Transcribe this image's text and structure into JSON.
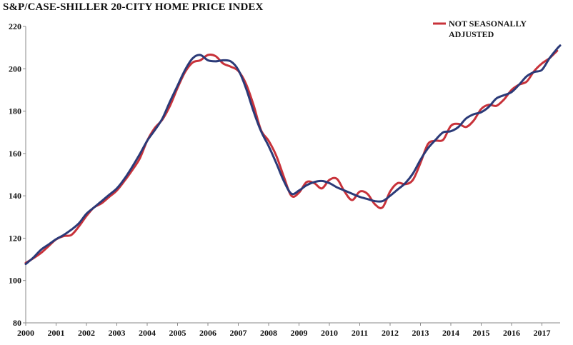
{
  "chart_data": {
    "type": "line",
    "title": "S&P/CASE-SHILLER 20-CITY HOME PRICE INDEX",
    "xlabel": "",
    "ylabel": "",
    "xlim": [
      2000,
      2017.6
    ],
    "ylim": [
      80,
      220
    ],
    "yticks": [
      80,
      100,
      120,
      140,
      160,
      180,
      200,
      220
    ],
    "xticks": [
      "2000",
      "2001",
      "2002",
      "2003",
      "2004",
      "2005",
      "2006",
      "2007",
      "2008",
      "2009",
      "2010",
      "2011",
      "2012",
      "2013",
      "2014",
      "2015",
      "2016",
      "2017"
    ],
    "grid": false,
    "legend": {
      "placement": "top-right",
      "lines": [
        "NOT SEASONALLY",
        "ADJUSTED"
      ]
    },
    "series": [
      {
        "name": "NOT SEASONALLY ADJUSTED",
        "color": "#c8323a",
        "x": [
          2000,
          2000.25,
          2000.5,
          2000.75,
          2001,
          2001.25,
          2001.5,
          2001.75,
          2002,
          2002.25,
          2002.5,
          2002.75,
          2003,
          2003.25,
          2003.5,
          2003.75,
          2004,
          2004.25,
          2004.5,
          2004.75,
          2005,
          2005.25,
          2005.5,
          2005.75,
          2006,
          2006.25,
          2006.5,
          2006.75,
          2007,
          2007.25,
          2007.5,
          2007.75,
          2008,
          2008.25,
          2008.5,
          2008.75,
          2009,
          2009.25,
          2009.5,
          2009.75,
          2010,
          2010.25,
          2010.5,
          2010.75,
          2011,
          2011.25,
          2011.5,
          2011.75,
          2012,
          2012.25,
          2012.5,
          2012.75,
          2013,
          2013.25,
          2013.5,
          2013.75,
          2014,
          2014.25,
          2014.5,
          2014.75,
          2015,
          2015.25,
          2015.5,
          2015.75,
          2016,
          2016.25,
          2016.5,
          2016.75,
          2017,
          2017.25,
          2017.5
        ],
        "values": [
          108.3,
          110.5,
          113.0,
          116.2,
          119.4,
          121.0,
          121.5,
          125.5,
          130.5,
          134.5,
          136.5,
          139.5,
          142.5,
          147.0,
          152.0,
          157.5,
          166.0,
          172.0,
          176.0,
          182.5,
          191.0,
          198.5,
          203.0,
          204.0,
          206.5,
          206.0,
          202.5,
          201.0,
          199.0,
          193.0,
          183.0,
          171.0,
          166.0,
          159.0,
          149.0,
          140.0,
          141.5,
          146.5,
          146.0,
          143.5,
          147.5,
          148.0,
          142.0,
          138.0,
          142.0,
          141.0,
          136.0,
          134.5,
          142.0,
          146.0,
          145.5,
          147.5,
          155.5,
          164.5,
          166.0,
          166.5,
          173.0,
          174.0,
          172.5,
          175.5,
          181.0,
          183.0,
          182.5,
          185.5,
          190.0,
          192.5,
          194.0,
          199.0,
          202.5,
          205.0,
          208.5
        ]
      },
      {
        "name": "",
        "color": "#2b3a78",
        "x": [
          2000,
          2000.25,
          2000.5,
          2000.75,
          2001,
          2001.25,
          2001.5,
          2001.75,
          2002,
          2002.25,
          2002.5,
          2002.75,
          2003,
          2003.25,
          2003.5,
          2003.75,
          2004,
          2004.25,
          2004.5,
          2004.75,
          2005,
          2005.25,
          2005.5,
          2005.75,
          2006,
          2006.25,
          2006.5,
          2006.75,
          2007,
          2007.25,
          2007.5,
          2007.75,
          2008,
          2008.25,
          2008.5,
          2008.75,
          2009,
          2009.25,
          2009.5,
          2009.75,
          2010,
          2010.25,
          2010.5,
          2010.75,
          2011,
          2011.25,
          2011.5,
          2011.75,
          2012,
          2012.25,
          2012.5,
          2012.75,
          2013,
          2013.25,
          2013.5,
          2013.75,
          2014,
          2014.25,
          2014.5,
          2014.75,
          2015,
          2015.25,
          2015.5,
          2015.75,
          2016,
          2016.25,
          2016.5,
          2016.75,
          2017,
          2017.25,
          2017.5,
          2017.6
        ],
        "values": [
          107.8,
          110.8,
          114.5,
          117.0,
          119.5,
          121.5,
          124.0,
          127.0,
          131.5,
          134.5,
          137.5,
          140.5,
          143.5,
          148.0,
          153.5,
          159.5,
          166.0,
          171.0,
          176.5,
          184.5,
          192.0,
          199.5,
          205.0,
          206.5,
          204.0,
          203.5,
          204.0,
          203.5,
          199.5,
          191.0,
          180.0,
          170.5,
          163.5,
          155.5,
          147.0,
          141.0,
          142.5,
          145.0,
          146.5,
          147.0,
          146.0,
          144.0,
          142.5,
          141.0,
          139.5,
          138.5,
          137.5,
          137.5,
          140.0,
          143.0,
          146.0,
          150.5,
          157.0,
          162.5,
          166.5,
          170.0,
          170.5,
          172.5,
          176.5,
          178.5,
          179.5,
          182.0,
          186.0,
          187.5,
          189.0,
          192.5,
          196.5,
          198.5,
          199.5,
          205.0,
          209.5,
          211.0
        ]
      }
    ]
  }
}
